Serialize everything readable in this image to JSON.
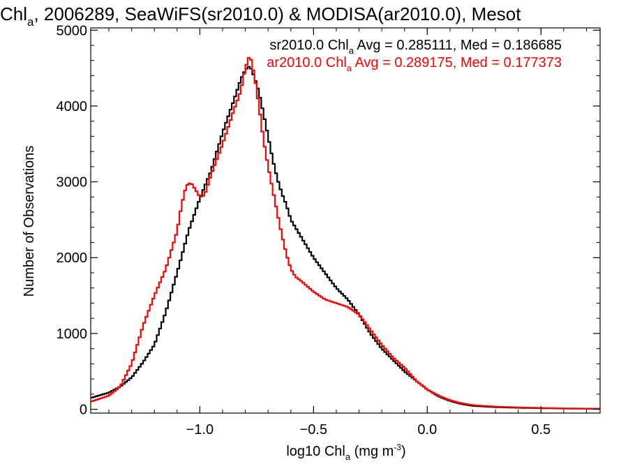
{
  "chart_data": {
    "type": "line",
    "title": {
      "main": "Chl",
      "sub": "a",
      "rest": ", 2006289, SeaWiFS(sr2010.0) & MODISA(ar2010.0), Mesot"
    },
    "xlabel": {
      "pre": "log10 Chl",
      "sub": "a",
      "mid": " (mg m",
      "sup": "-3",
      "post": ")"
    },
    "ylabel": "Number of Observations",
    "xlim": [
      -1.48,
      0.76
    ],
    "ylim": [
      -50,
      5030
    ],
    "x_ticks": [
      -1.0,
      -0.5,
      0.0,
      0.5
    ],
    "x_tick_labels": [
      "−1.0",
      "−0.5",
      "0.0",
      "0.5"
    ],
    "y_ticks": [
      0,
      1000,
      2000,
      3000,
      4000,
      5000
    ],
    "y_tick_labels": [
      "0",
      "1000",
      "2000",
      "3000",
      "4000",
      "5000"
    ],
    "legend_placement": "top-right",
    "series": [
      {
        "name": "sr2010.0",
        "color": "#000000",
        "legend": {
          "pre": "sr2010.0 Chl",
          "sub": "a",
          "post": " Avg = 0.285111, Med = 0.186685"
        },
        "x": [
          -1.48,
          -1.4,
          -1.35,
          -1.3,
          -1.25,
          -1.2,
          -1.15,
          -1.1,
          -1.05,
          -1.0,
          -0.95,
          -0.9,
          -0.85,
          -0.82,
          -0.8,
          -0.78,
          -0.76,
          -0.74,
          -0.72,
          -0.7,
          -0.68,
          -0.66,
          -0.64,
          -0.62,
          -0.6,
          -0.55,
          -0.5,
          -0.45,
          -0.4,
          -0.35,
          -0.3,
          -0.25,
          -0.2,
          -0.15,
          -0.1,
          -0.05,
          0.0,
          0.05,
          0.1,
          0.15,
          0.2,
          0.3,
          0.4,
          0.5,
          0.6,
          0.7,
          0.76
        ],
        "y": [
          150,
          220,
          300,
          420,
          620,
          850,
          1280,
          1800,
          2350,
          2780,
          3150,
          3650,
          4080,
          4350,
          4480,
          4530,
          4380,
          4180,
          3900,
          3600,
          3300,
          3050,
          2850,
          2700,
          2500,
          2250,
          2000,
          1800,
          1600,
          1450,
          1250,
          1000,
          800,
          650,
          500,
          380,
          260,
          170,
          110,
          70,
          45,
          28,
          20,
          14,
          10,
          8,
          6
        ]
      },
      {
        "name": "ar2010.0",
        "color": "#ff0000",
        "legend": {
          "pre": "ar2010.0 Chl",
          "sub": "a",
          "post": " Avg = 0.289175, Med = 0.177373"
        },
        "x": [
          -1.48,
          -1.4,
          -1.35,
          -1.3,
          -1.25,
          -1.2,
          -1.15,
          -1.1,
          -1.08,
          -1.06,
          -1.04,
          -1.02,
          -1.0,
          -0.98,
          -0.95,
          -0.9,
          -0.85,
          -0.82,
          -0.8,
          -0.78,
          -0.76,
          -0.74,
          -0.72,
          -0.7,
          -0.68,
          -0.66,
          -0.64,
          -0.62,
          -0.6,
          -0.58,
          -0.55,
          -0.5,
          -0.45,
          -0.4,
          -0.35,
          -0.3,
          -0.25,
          -0.2,
          -0.15,
          -0.1,
          -0.05,
          0.0,
          0.05,
          0.1,
          0.15,
          0.2,
          0.3,
          0.4,
          0.5,
          0.6,
          0.7,
          0.76
        ],
        "y": [
          100,
          180,
          300,
          600,
          1100,
          1500,
          1850,
          2350,
          2700,
          2950,
          2990,
          2900,
          2800,
          2820,
          3100,
          3500,
          3950,
          4200,
          4500,
          4680,
          4400,
          4000,
          3550,
          3200,
          2900,
          2600,
          2300,
          2050,
          1850,
          1750,
          1680,
          1550,
          1450,
          1400,
          1350,
          1250,
          1050,
          850,
          680,
          550,
          380,
          260,
          180,
          120,
          80,
          55,
          35,
          25,
          18,
          12,
          9,
          7
        ]
      }
    ]
  }
}
